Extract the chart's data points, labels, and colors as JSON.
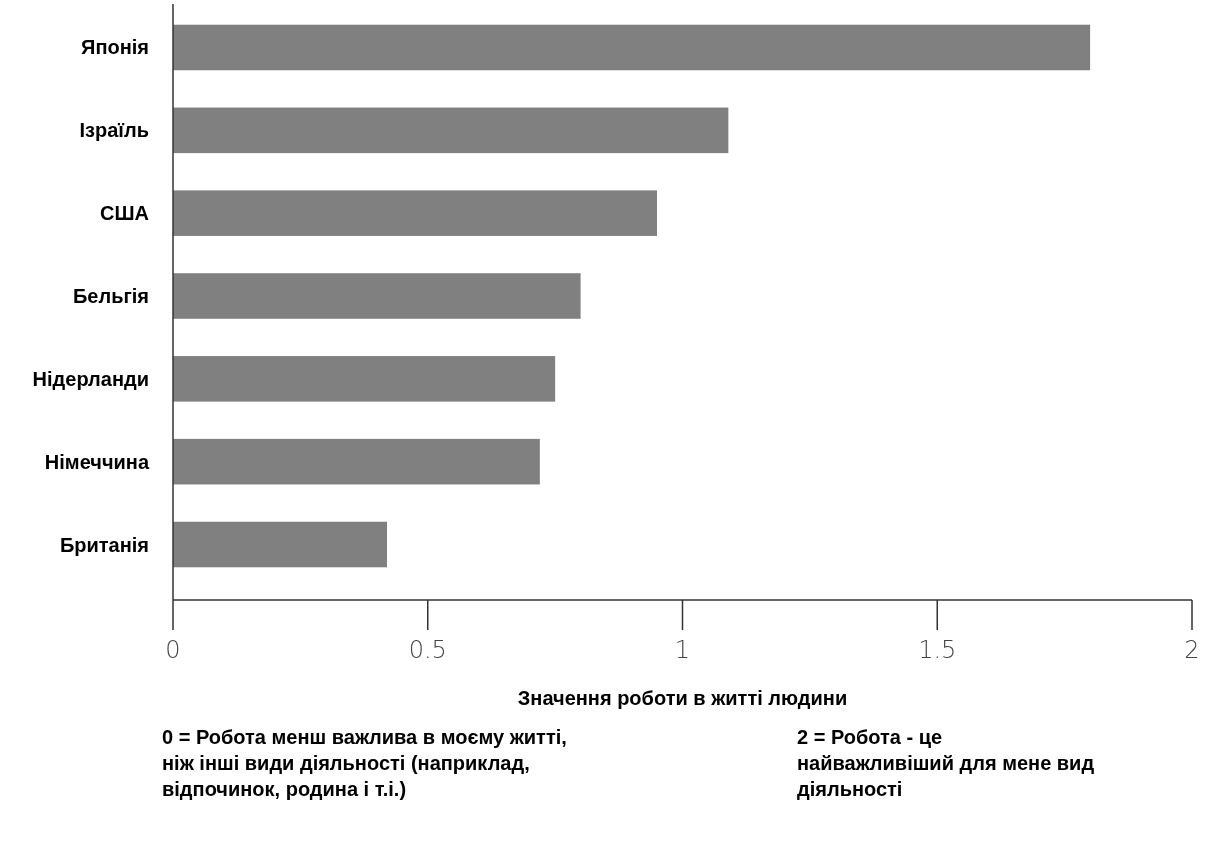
{
  "chart_data": {
    "type": "bar",
    "orientation": "horizontal",
    "categories": [
      "Японія",
      "Ізраїль",
      "США",
      "Бельгія",
      "Нідерланди",
      "Німеччина",
      "Британія"
    ],
    "values": [
      1.8,
      1.09,
      0.95,
      0.8,
      0.75,
      0.72,
      0.42
    ],
    "color": "#808080",
    "xlim": [
      0,
      2
    ],
    "xticks": [
      0,
      0.5,
      1,
      1.5,
      2
    ],
    "xlabel": "Значення роботи в житті людини",
    "annotations": [
      "0 = Робота менш важлива в моєму житті, ніж інші види діяльності (наприклад, відпочинок, родина і т.і.)",
      "2 = Робота - це найважливіший для мене вид діяльності"
    ],
    "grid": false
  }
}
